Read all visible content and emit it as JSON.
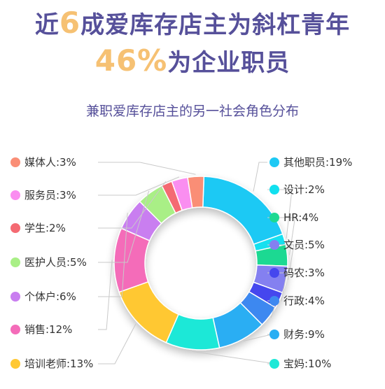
{
  "header": {
    "line1_a": "近",
    "line1_highlight": "6",
    "line1_b": "成爱库存店主为斜杠青年",
    "line2_highlight": "46%",
    "line2_b": "为企业职员"
  },
  "colors": {
    "title": "#56509a",
    "highlight": "#f6c173"
  },
  "chart_data": {
    "type": "pie",
    "style": "donut",
    "title": "兼职爱库存店主的另一社会角色分布",
    "slices": [
      {
        "label": "其他职员",
        "value": 19,
        "display": "其他职员:19%",
        "color": "#1ec9f4"
      },
      {
        "label": "设计",
        "value": 2,
        "display": "设计:2%",
        "color": "#12e0ef"
      },
      {
        "label": "HR",
        "value": 4,
        "display": "HR:4%",
        "color": "#1ed992"
      },
      {
        "label": "文员",
        "value": 5,
        "display": "文员:5%",
        "color": "#8480f0"
      },
      {
        "label": "码农",
        "value": 3,
        "display": "码农:3%",
        "color": "#4546ee"
      },
      {
        "label": "行政",
        "value": 4,
        "display": "行政:4%",
        "color": "#3d88f0"
      },
      {
        "label": "财务",
        "value": 9,
        "display": "财务:9%",
        "color": "#29aef3"
      },
      {
        "label": "宝妈",
        "value": 10,
        "display": "宝妈:10%",
        "color": "#1ee8d7"
      },
      {
        "label": "培训老师",
        "value": 13,
        "display": "培训老师:13%",
        "color": "#ffc833"
      },
      {
        "label": "销售",
        "value": 12,
        "display": "销售:12%",
        "color": "#f46cb9"
      },
      {
        "label": "个体户",
        "value": 6,
        "display": "个体户:6%",
        "color": "#c97ef0"
      },
      {
        "label": "医护人员",
        "value": 5,
        "display": "医护人员:5%",
        "color": "#a9ef86"
      },
      {
        "label": "学生",
        "value": 2,
        "display": "学生:2%",
        "color": "#f46a72"
      },
      {
        "label": "服务员",
        "value": 3,
        "display": "服务员:3%",
        "color": "#fa8ef0"
      },
      {
        "label": "媒体人",
        "value": 3,
        "display": "媒体人:3%",
        "color": "#fa8e76"
      }
    ],
    "legend": {
      "right": [
        "其他职员",
        "设计",
        "HR",
        "文员",
        "码农",
        "行政",
        "财务",
        "宝妈"
      ],
      "left": [
        "媒体人",
        "服务员",
        "学生",
        "医护人员",
        "个体户",
        "销售",
        "培训老师"
      ]
    }
  }
}
